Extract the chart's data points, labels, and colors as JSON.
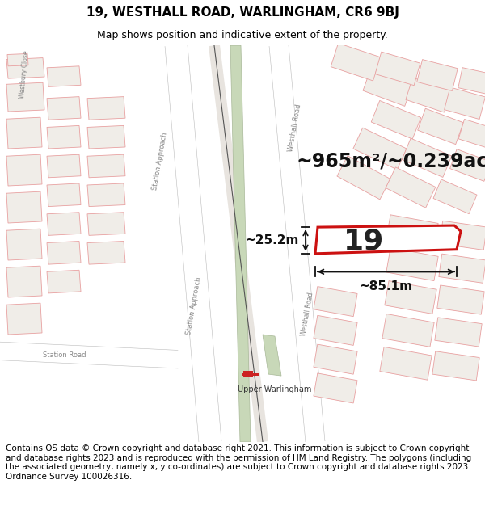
{
  "title": "19, WESTHALL ROAD, WARLINGHAM, CR6 9BJ",
  "subtitle": "Map shows position and indicative extent of the property.",
  "footer": "Contains OS data © Crown copyright and database right 2021. This information is subject to Crown copyright and database rights 2023 and is reproduced with the permission of HM Land Registry. The polygons (including the associated geometry, namely x, y co-ordinates) are subject to Crown copyright and database rights 2023 Ordnance Survey 100026316.",
  "area_text": "~965m²/~0.239ac.",
  "dim_width": "~85.1m",
  "dim_height": "~25.2m",
  "label_19": "19",
  "station_label": "Upper Warlingham",
  "map_bg": "#f7f4f0",
  "road_color": "#ffffff",
  "prop_color": "#cc1111",
  "bkg_prop_color": "#e8a0a0",
  "road_label_color": "#888888",
  "title_fontsize": 11,
  "subtitle_fontsize": 9,
  "footer_fontsize": 7.5,
  "area_fontsize": 17,
  "dim_fontsize": 11,
  "label_19_fontsize": 26
}
